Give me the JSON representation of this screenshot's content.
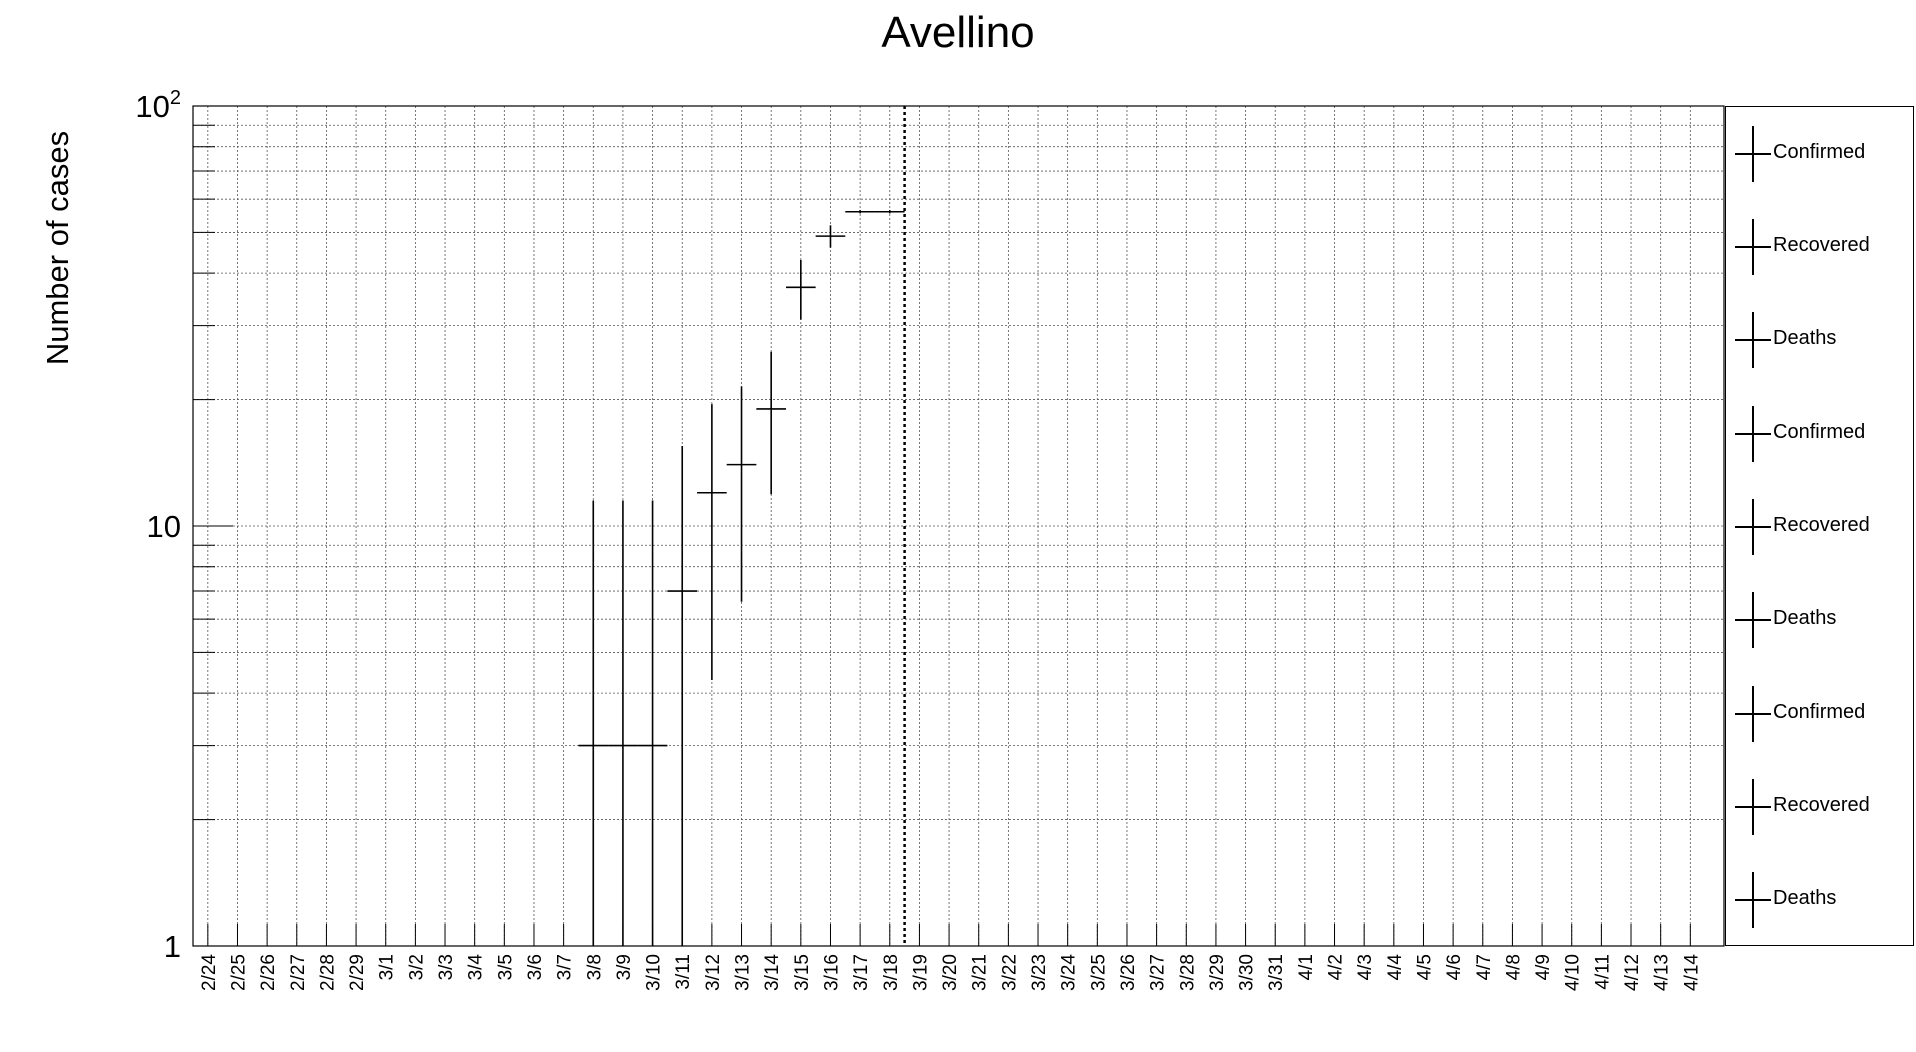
{
  "chart_data": {
    "type": "scatter",
    "title": "Avellino",
    "xlabel": "",
    "ylabel": "Number of cases",
    "y_scale": "log",
    "ylim": [
      1,
      100
    ],
    "y_ticks": [
      {
        "value": 1,
        "base": "1",
        "exp": ""
      },
      {
        "value": 10,
        "base": "10",
        "exp": ""
      },
      {
        "value": 100,
        "base": "10",
        "exp": "2"
      }
    ],
    "grid": true,
    "categories": [
      "2/24",
      "2/25",
      "2/26",
      "2/27",
      "2/28",
      "2/29",
      "3/1",
      "3/2",
      "3/3",
      "3/4",
      "3/5",
      "3/6",
      "3/7",
      "3/8",
      "3/9",
      "3/10",
      "3/11",
      "3/12",
      "3/13",
      "3/14",
      "3/15",
      "3/16",
      "3/17",
      "3/18",
      "3/19",
      "3/20",
      "3/21",
      "3/22",
      "3/23",
      "3/24",
      "3/25",
      "3/26",
      "3/27",
      "3/28",
      "3/29",
      "3/30",
      "3/31",
      "4/1",
      "4/2",
      "4/3",
      "4/4",
      "4/5",
      "4/6",
      "4/7",
      "4/8",
      "4/9",
      "4/10",
      "4/11",
      "4/12",
      "4/13",
      "4/14"
    ],
    "series": [
      {
        "name": "Confirmed",
        "points": [
          {
            "x": "3/8",
            "y": 3,
            "y_low": 1,
            "y_high": 11.5,
            "x_half_width": 0.5
          },
          {
            "x": "3/9",
            "y": 3,
            "y_low": 1,
            "y_high": 11.5,
            "x_half_width": 0.5
          },
          {
            "x": "3/10",
            "y": 3,
            "y_low": 1,
            "y_high": 11.5,
            "x_half_width": 0.5
          },
          {
            "x": "3/11",
            "y": 7,
            "y_low": 1,
            "y_high": 15.5,
            "x_half_width": 0.5
          },
          {
            "x": "3/12",
            "y": 12,
            "y_low": 4.3,
            "y_high": 19.5,
            "x_half_width": 0.5
          },
          {
            "x": "3/13",
            "y": 14,
            "y_low": 6.6,
            "y_high": 21.5,
            "x_half_width": 0.5
          },
          {
            "x": "3/14",
            "y": 19,
            "y_low": 11.9,
            "y_high": 26,
            "x_half_width": 0.5
          },
          {
            "x": "3/15",
            "y": 37,
            "y_low": 31,
            "y_high": 43,
            "x_half_width": 0.5
          },
          {
            "x": "3/16",
            "y": 49,
            "y_low": 46,
            "y_high": 52,
            "x_half_width": 0.5
          },
          {
            "x": "3/17",
            "y": 56,
            "y_low": 55.5,
            "y_high": 56.5,
            "x_half_width": 0.5
          },
          {
            "x": "3/18",
            "y": 56,
            "y_low": 55.5,
            "y_high": 56.5,
            "x_half_width": 0.5
          }
        ]
      }
    ],
    "vertical_marker": {
      "between": [
        "3/18",
        "3/19"
      ],
      "style": "dotted"
    },
    "legend": {
      "placement": "right",
      "entries": [
        "Confirmed",
        "Recovered",
        "Deaths",
        "Confirmed",
        "Recovered",
        "Deaths",
        "Confirmed",
        "Recovered",
        "Deaths"
      ]
    }
  }
}
